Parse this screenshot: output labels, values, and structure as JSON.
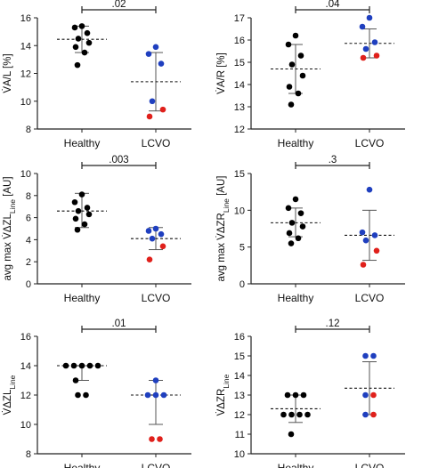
{
  "chart_data": [
    {
      "id": "VAL",
      "type": "scatter",
      "ylabel": "V̇A/L [%]",
      "ylim": [
        8,
        16
      ],
      "yticks": [
        8,
        10,
        12,
        14,
        16
      ],
      "categories": [
        "Healthy",
        "LCVO"
      ],
      "significance": ".02",
      "groups": [
        {
          "category": "Healthy",
          "mean": 14.45,
          "error_low": 13.5,
          "error_high": 15.4,
          "values": [
            15.4,
            15.3,
            14.9,
            14.5,
            14.2,
            13.9,
            13.5,
            12.6
          ],
          "colors": [
            "black",
            "black",
            "black",
            "black",
            "black",
            "black",
            "black",
            "black"
          ]
        },
        {
          "category": "LCVO",
          "mean": 11.4,
          "error_low": 9.3,
          "error_high": 13.5,
          "values": [
            13.9,
            13.4,
            12.7,
            10.0,
            9.4,
            8.9
          ],
          "colors": [
            "blue",
            "blue",
            "blue",
            "blue",
            "red",
            "red"
          ]
        }
      ]
    },
    {
      "id": "VAR",
      "type": "scatter",
      "ylabel": "V̇A/R [%]",
      "ylim": [
        12,
        17
      ],
      "yticks": [
        12,
        13,
        14,
        15,
        16,
        17
      ],
      "categories": [
        "Healthy",
        "LCVO"
      ],
      "significance": ".04",
      "groups": [
        {
          "category": "Healthy",
          "mean": 14.7,
          "error_low": 13.6,
          "error_high": 15.8,
          "values": [
            16.2,
            15.8,
            15.3,
            14.9,
            14.4,
            13.9,
            13.6,
            13.1
          ],
          "colors": [
            "black",
            "black",
            "black",
            "black",
            "black",
            "black",
            "black",
            "black"
          ]
        },
        {
          "category": "LCVO",
          "mean": 15.85,
          "error_low": 15.2,
          "error_high": 16.5,
          "values": [
            17.0,
            16.6,
            15.9,
            15.6,
            15.3,
            15.2
          ],
          "colors": [
            "blue",
            "blue",
            "blue",
            "blue",
            "red",
            "red"
          ]
        }
      ]
    },
    {
      "id": "ZL",
      "type": "scatter",
      "ylabel": "avg max V̇ΔZL",
      "ylabel_sub": "Line",
      "ylabel_suffix": " [AU]",
      "ylim": [
        0,
        10
      ],
      "yticks": [
        0,
        2,
        4,
        6,
        8,
        10
      ],
      "categories": [
        "Healthy",
        "LCVO"
      ],
      "significance": ".003",
      "groups": [
        {
          "category": "Healthy",
          "mean": 6.6,
          "error_low": 5.1,
          "error_high": 8.2,
          "values": [
            8.1,
            7.4,
            6.9,
            6.6,
            6.3,
            5.9,
            5.4,
            4.9
          ],
          "colors": [
            "black",
            "black",
            "black",
            "black",
            "black",
            "black",
            "black",
            "black"
          ]
        },
        {
          "category": "LCVO",
          "mean": 4.1,
          "error_low": 3.1,
          "error_high": 5.1,
          "values": [
            5.0,
            4.8,
            4.5,
            4.1,
            3.4,
            2.2
          ],
          "colors": [
            "blue",
            "blue",
            "blue",
            "blue",
            "red",
            "red"
          ]
        }
      ]
    },
    {
      "id": "ZR",
      "type": "scatter",
      "ylabel": "avg max V̇ΔZR",
      "ylabel_sub": "Line",
      "ylabel_suffix": " [AU]",
      "ylim": [
        0,
        15
      ],
      "yticks": [
        0,
        5,
        10,
        15
      ],
      "categories": [
        "Healthy",
        "LCVO"
      ],
      "significance": ".3",
      "groups": [
        {
          "category": "Healthy",
          "mean": 8.3,
          "error_low": 6.4,
          "error_high": 10.3,
          "values": [
            11.5,
            10.3,
            9.6,
            8.3,
            7.8,
            6.9,
            6.2,
            5.5
          ],
          "colors": [
            "black",
            "black",
            "black",
            "black",
            "black",
            "black",
            "black",
            "black"
          ]
        },
        {
          "category": "LCVO",
          "mean": 6.6,
          "error_low": 3.2,
          "error_high": 10.0,
          "values": [
            12.8,
            7.0,
            6.6,
            5.9,
            4.5,
            2.6
          ],
          "colors": [
            "blue",
            "blue",
            "blue",
            "blue",
            "red",
            "red"
          ]
        }
      ]
    },
    {
      "id": "VZL",
      "type": "scatter",
      "ylabel": "V̇ΔZL",
      "ylabel_sub": "Line",
      "ylabel_suffix": "",
      "ylim": [
        8,
        16
      ],
      "yticks": [
        8,
        10,
        12,
        14,
        16
      ],
      "categories": [
        "Healthy",
        "LCVO"
      ],
      "significance": ".01",
      "groups": [
        {
          "category": "Healthy",
          "mean": 14.0,
          "error_low": 13.0,
          "error_high": 14.0,
          "values": [
            14,
            14,
            14,
            14,
            14,
            13,
            12,
            12
          ],
          "colors": [
            "black",
            "black",
            "black",
            "black",
            "black",
            "black",
            "black",
            "black"
          ]
        },
        {
          "category": "LCVO",
          "mean": 12.0,
          "error_low": 10.0,
          "error_high": 13.0,
          "values": [
            13,
            12,
            12,
            12,
            9,
            9
          ],
          "colors": [
            "blue",
            "blue",
            "blue",
            "blue",
            "red",
            "red"
          ]
        }
      ]
    },
    {
      "id": "VZR",
      "type": "scatter",
      "ylabel": "V̇ΔZR",
      "ylabel_sub": "Line",
      "ylabel_suffix": "",
      "ylim": [
        10,
        16
      ],
      "yticks": [
        10,
        11,
        12,
        13,
        14,
        15,
        16
      ],
      "categories": [
        "Healthy",
        "LCVO"
      ],
      "significance": ".12",
      "groups": [
        {
          "category": "Healthy",
          "mean": 12.3,
          "error_low": 11.6,
          "error_high": 13.0,
          "values": [
            13,
            13,
            13,
            12,
            12,
            12,
            12,
            11
          ],
          "colors": [
            "black",
            "black",
            "black",
            "black",
            "black",
            "black",
            "black",
            "black"
          ]
        },
        {
          "category": "LCVO",
          "mean": 13.35,
          "error_low": 12.0,
          "error_high": 14.7,
          "values": [
            15,
            15,
            13,
            13,
            12,
            12
          ],
          "colors": [
            "blue",
            "blue",
            "blue",
            "red",
            "blue",
            "red"
          ]
        }
      ]
    }
  ],
  "colors": {
    "black": "#000000",
    "blue": "#1f3fbf",
    "red": "#e0201b",
    "axis": "#222222"
  }
}
